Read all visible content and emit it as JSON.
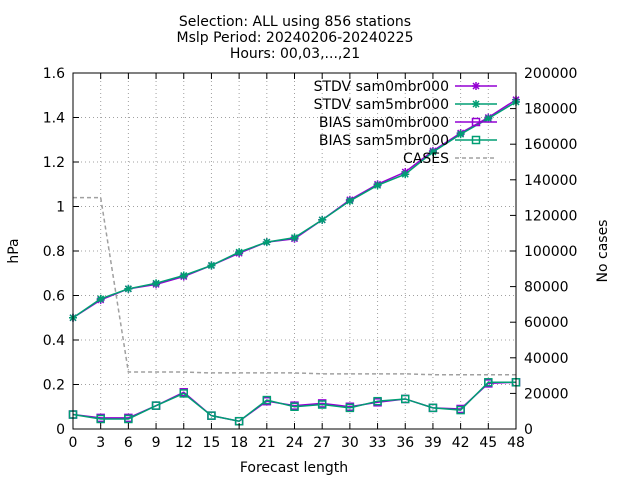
{
  "chart_data": {
    "type": "line",
    "title_lines": [
      "Selection: ALL using   856 stations",
      "Mslp   Period: 20240206-20240225",
      "Hours: 00,03,...,21"
    ],
    "xlabel": "Forecast length",
    "ylabel": "hPa",
    "y2label": "No cases",
    "x": [
      0,
      3,
      6,
      9,
      12,
      15,
      18,
      21,
      24,
      27,
      30,
      33,
      36,
      39,
      42,
      45,
      48
    ],
    "x_ticks": [
      "0",
      "3",
      "6",
      "9",
      "12",
      "15",
      "18",
      "21",
      "24",
      "27",
      "30",
      "33",
      "36",
      "39",
      "42",
      "45",
      "48"
    ],
    "xlim": [
      0,
      48
    ],
    "ylim": [
      0,
      1.6
    ],
    "y_ticks": [
      "0",
      "0.2",
      "0.4",
      "0.6",
      "0.8",
      "1",
      "1.2",
      "1.4",
      "1.6"
    ],
    "y2lim": [
      0,
      200000
    ],
    "y2_ticks": [
      "0",
      "20000",
      "40000",
      "60000",
      "80000",
      "100000",
      "120000",
      "140000",
      "160000",
      "180000",
      "200000"
    ],
    "grid": true,
    "legend_position": "top-right",
    "series": [
      {
        "name": "STDV sam0mbr000",
        "color": "#9400d3",
        "marker": "star",
        "axis": "y1",
        "values": [
          0.5,
          0.58,
          0.63,
          0.65,
          0.685,
          0.735,
          0.79,
          0.84,
          0.855,
          0.94,
          1.03,
          1.1,
          1.155,
          1.25,
          1.33,
          1.4,
          1.48
        ]
      },
      {
        "name": "STDV sam5mbr000",
        "color": "#009e73",
        "marker": "star",
        "axis": "y1",
        "values": [
          0.5,
          0.585,
          0.63,
          0.655,
          0.69,
          0.735,
          0.795,
          0.84,
          0.86,
          0.94,
          1.025,
          1.095,
          1.145,
          1.245,
          1.325,
          1.395,
          1.47
        ]
      },
      {
        "name": "BIAS sam0mbr000",
        "color": "#9400d3",
        "marker": "square",
        "axis": "y1",
        "values": [
          0.065,
          0.05,
          0.05,
          0.105,
          0.165,
          0.06,
          0.035,
          0.125,
          0.105,
          0.115,
          0.1,
          0.12,
          0.135,
          0.095,
          0.09,
          0.205,
          0.21
        ]
      },
      {
        "name": "BIAS sam5mbr000",
        "color": "#009e73",
        "marker": "square",
        "axis": "y1",
        "values": [
          0.065,
          0.045,
          0.045,
          0.105,
          0.16,
          0.06,
          0.035,
          0.13,
          0.1,
          0.11,
          0.095,
          0.125,
          0.135,
          0.095,
          0.085,
          0.21,
          0.21
        ]
      },
      {
        "name": "CASES",
        "color": "#a0a0a0",
        "marker": "none",
        "dash": true,
        "axis": "y2",
        "values": [
          130000,
          130000,
          32000,
          32000,
          32000,
          31500,
          31500,
          31500,
          31500,
          31000,
          31000,
          31000,
          31000,
          30500,
          30500,
          30500,
          30500
        ]
      }
    ]
  }
}
